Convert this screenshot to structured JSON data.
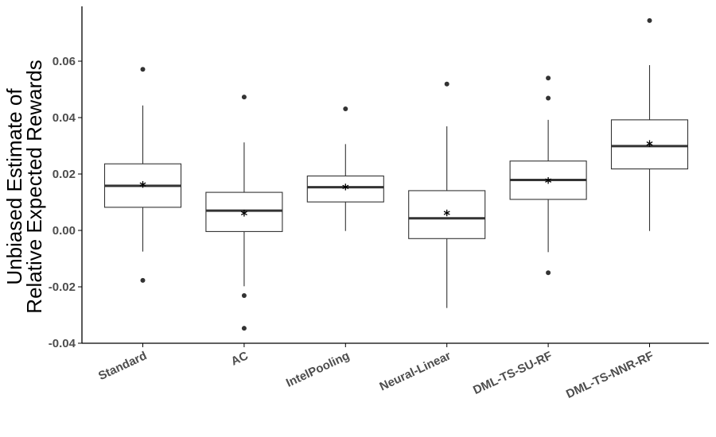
{
  "chart_data": {
    "type": "boxplot",
    "ylabel_lines": [
      "Unbiased Estimate of",
      "Relative Expected Rewards"
    ],
    "xlabel": "",
    "title": "",
    "ylim": [
      -0.04,
      0.08
    ],
    "yticks": [
      -0.04,
      -0.02,
      0.0,
      0.02,
      0.04,
      0.06
    ],
    "ytick_labels": [
      "-0.04",
      "-0.02",
      "0.00",
      "0.02",
      "0.04",
      "0.06"
    ],
    "grid": false,
    "categories": [
      "Standard",
      "AC",
      "IntelPooling",
      "Neural-Linear",
      "DML-TS-SU-RF",
      "DML-TS-NNR-RF"
    ],
    "boxes": [
      {
        "name": "Standard",
        "whisker_low": -0.0075,
        "q1": 0.0082,
        "median": 0.0158,
        "q3": 0.0236,
        "whisker_high": 0.0443,
        "mean": 0.0163,
        "outliers": [
          0.0571,
          -0.0177
        ]
      },
      {
        "name": "AC",
        "whisker_low": -0.0198,
        "q1": -0.0004,
        "median": 0.007,
        "q3": 0.0135,
        "whisker_high": 0.0312,
        "mean": 0.0061,
        "outliers": [
          0.0473,
          -0.0231,
          -0.0347
        ]
      },
      {
        "name": "IntelPooling",
        "whisker_low": -0.0002,
        "q1": 0.0101,
        "median": 0.0153,
        "q3": 0.0193,
        "whisker_high": 0.0306,
        "mean": 0.0154,
        "outliers": [
          0.0431
        ]
      },
      {
        "name": "Neural-Linear",
        "whisker_low": -0.0275,
        "q1": -0.0029,
        "median": 0.0043,
        "q3": 0.0141,
        "whisker_high": 0.0369,
        "mean": 0.0062,
        "outliers": [
          0.0519
        ]
      },
      {
        "name": "DML-TS-SU-RF",
        "whisker_low": -0.0077,
        "q1": 0.011,
        "median": 0.0179,
        "q3": 0.0246,
        "whisker_high": 0.0392,
        "mean": 0.0177,
        "outliers": [
          0.054,
          0.0469,
          -0.015
        ]
      },
      {
        "name": "DML-TS-NNR-RF",
        "whisker_low": -0.0002,
        "q1": 0.0218,
        "median": 0.0299,
        "q3": 0.0392,
        "whisker_high": 0.0586,
        "mean": 0.0308,
        "outliers": [
          0.0744
        ]
      }
    ],
    "colors": {
      "box_fill": "#ffffff",
      "box_stroke": "#333333",
      "median": "#333333",
      "outlier": "#333333",
      "axis": "#000000",
      "tick_label": "#4d4d4d"
    },
    "mean_marker": "asterisk"
  }
}
